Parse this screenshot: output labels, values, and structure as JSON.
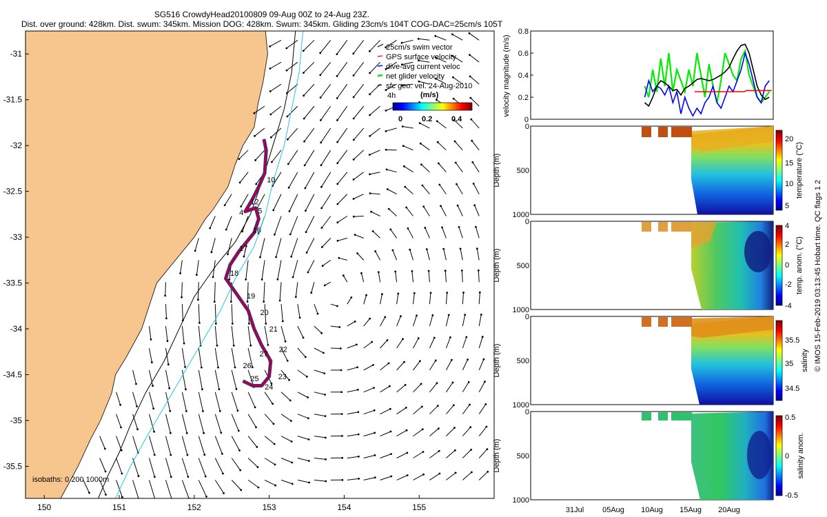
{
  "header": {
    "line1": "SG516 CrowdyHead20100809 09-Aug 00Z to 24-Aug 23Z.",
    "line2": "Dist. over ground: 428km. Dist. swum: 345km. Mission DOG: 428km. Swum: 345km. Gliding 23cm/s 104T COG-DAC=25cm/s 105T"
  },
  "colors": {
    "land": "#f7c58e",
    "track": "#cc0000",
    "track_dac": "#1f2fd0",
    "isobath_200": "#000000",
    "isobath_1000": "#22c8e8",
    "gps_velocity": "#ff0000",
    "dac_velocity": "#0000ff",
    "net_velocity": "#00ee00"
  },
  "side_note": "© IMOS 15-Feb-2019 03:13:45 Hobart time. QC flags 1 2",
  "chart_data": [
    {
      "type": "map",
      "xlim": [
        149.75,
        156.0
      ],
      "ylim": [
        -35.85,
        -30.75
      ],
      "x_ticks": [
        150,
        151,
        152,
        153,
        154,
        155
      ],
      "y_ticks": [
        -31,
        -31.5,
        -32,
        -32.5,
        -33,
        -33.5,
        -34,
        -34.5,
        -35,
        -35.5
      ],
      "legend": {
        "placement": "top-right",
        "entries": [
          "25cm/s swim vector",
          "GPS surface velocity",
          "dive-avg current veloc",
          "net glider velocity",
          "sfc geo. vel. 24-Aug-2010"
        ],
        "interval_label": "4h"
      },
      "colorbar": {
        "title": "(m/s)",
        "ticks": [
          "0",
          "0.2",
          "0.4"
        ],
        "range": [
          0,
          0.5
        ]
      },
      "isobath_label": "isobaths: 0  200  1000m",
      "coast": [
        [
          152.95,
          -30.75
        ],
        [
          152.98,
          -31.0
        ],
        [
          152.92,
          -31.3
        ],
        [
          152.85,
          -31.55
        ],
        [
          152.8,
          -31.8
        ],
        [
          152.65,
          -32.0
        ],
        [
          152.55,
          -32.2
        ],
        [
          152.45,
          -32.45
        ],
        [
          152.25,
          -32.7
        ],
        [
          152.15,
          -32.8
        ],
        [
          152.0,
          -33.0
        ],
        [
          151.7,
          -33.3
        ],
        [
          151.5,
          -33.5
        ],
        [
          151.4,
          -33.75
        ],
        [
          151.3,
          -34.0
        ],
        [
          151.1,
          -34.3
        ],
        [
          150.95,
          -34.5
        ],
        [
          150.9,
          -34.7
        ],
        [
          150.75,
          -35.0
        ],
        [
          150.62,
          -35.2
        ],
        [
          150.45,
          -35.5
        ],
        [
          150.22,
          -35.85
        ]
      ],
      "isobath_200": [
        [
          153.35,
          -30.75
        ],
        [
          153.3,
          -31.2
        ],
        [
          153.2,
          -31.6
        ],
        [
          153.05,
          -32.0
        ],
        [
          152.9,
          -32.4
        ],
        [
          152.75,
          -32.75
        ],
        [
          152.55,
          -33.05
        ],
        [
          152.3,
          -33.3
        ],
        [
          152.0,
          -33.65
        ],
        [
          151.8,
          -34.0
        ],
        [
          151.6,
          -34.35
        ],
        [
          151.35,
          -34.7
        ],
        [
          151.15,
          -35.05
        ],
        [
          151.0,
          -35.35
        ],
        [
          150.85,
          -35.6
        ],
        [
          150.72,
          -35.85
        ]
      ],
      "isobath_1000": [
        [
          153.45,
          -30.75
        ],
        [
          153.4,
          -31.2
        ],
        [
          153.3,
          -31.6
        ],
        [
          153.2,
          -32.0
        ],
        [
          153.05,
          -32.4
        ],
        [
          152.95,
          -32.75
        ],
        [
          152.8,
          -33.1
        ],
        [
          152.55,
          -33.45
        ],
        [
          152.35,
          -33.8
        ],
        [
          152.1,
          -34.15
        ],
        [
          151.85,
          -34.5
        ],
        [
          151.6,
          -34.85
        ],
        [
          151.35,
          -35.2
        ],
        [
          151.15,
          -35.5
        ],
        [
          150.95,
          -35.85
        ]
      ],
      "track": [
        [
          152.93,
          -31.93
        ],
        [
          152.96,
          -32.05
        ],
        [
          152.94,
          -32.3
        ],
        [
          152.86,
          -32.45
        ],
        [
          152.78,
          -32.58
        ],
        [
          152.68,
          -32.72
        ],
        [
          152.82,
          -32.68
        ],
        [
          152.86,
          -32.8
        ],
        [
          152.8,
          -32.95
        ],
        [
          152.7,
          -33.05
        ],
        [
          152.6,
          -33.15
        ],
        [
          152.48,
          -33.3
        ],
        [
          152.42,
          -33.45
        ],
        [
          152.55,
          -33.6
        ],
        [
          152.72,
          -33.8
        ],
        [
          152.8,
          -34.0
        ],
        [
          152.9,
          -34.18
        ],
        [
          153.02,
          -34.35
        ],
        [
          153.0,
          -34.52
        ],
        [
          152.9,
          -34.62
        ],
        [
          152.78,
          -34.62
        ],
        [
          152.65,
          -34.57
        ]
      ],
      "dive_labels": [
        {
          "text": "10",
          "lon": 152.97,
          "lat": -32.4
        },
        {
          "text": "12",
          "lon": 152.75,
          "lat": -32.64
        },
        {
          "text": "5",
          "lon": 152.85,
          "lat": -32.74
        },
        {
          "text": "4",
          "lon": 152.6,
          "lat": -32.76
        },
        {
          "text": "16",
          "lon": 152.78,
          "lat": -32.95
        },
        {
          "text": "17",
          "lon": 152.6,
          "lat": -33.15
        },
        {
          "text": "18",
          "lon": 152.48,
          "lat": -33.42
        },
        {
          "text": "19",
          "lon": 152.7,
          "lat": -33.67
        },
        {
          "text": "20",
          "lon": 152.88,
          "lat": -33.85
        },
        {
          "text": "21",
          "lon": 153.0,
          "lat": -34.03
        },
        {
          "text": "22",
          "lon": 153.13,
          "lat": -34.25
        },
        {
          "text": "27",
          "lon": 152.87,
          "lat": -34.3
        },
        {
          "text": "23",
          "lon": 153.12,
          "lat": -34.55
        },
        {
          "text": "26",
          "lon": 152.65,
          "lat": -34.43
        },
        {
          "text": "25",
          "lon": 152.75,
          "lat": -34.57
        },
        {
          "text": "24",
          "lon": 152.94,
          "lat": -34.66
        }
      ]
    },
    {
      "type": "line",
      "ylabel": "velocity magnitude (m/s)",
      "ylim": [
        0,
        0.8
      ],
      "y_ticks": [
        "0",
        "0.2",
        "0.4",
        "0.6",
        "0.8"
      ],
      "series": [
        {
          "color": "#00ee00",
          "x": [
            9.0,
            9.5,
            10.0,
            10.5,
            11.0,
            11.5,
            12.0,
            12.5,
            13.0,
            13.5,
            14.0,
            14.5,
            15.0,
            15.5,
            16.0,
            16.5,
            17.0,
            17.5,
            18.0,
            18.5,
            19.0,
            19.5,
            20.0,
            20.5,
            21.0,
            21.5,
            22.0,
            22.5,
            23.0,
            23.5,
            24.0,
            24.5
          ],
          "y": [
            0.3,
            0.2,
            0.45,
            0.25,
            0.55,
            0.3,
            0.6,
            0.25,
            0.45,
            0.35,
            0.25,
            0.45,
            0.3,
            0.6,
            0.4,
            0.2,
            0.5,
            0.3,
            0.15,
            0.35,
            0.6,
            0.5,
            0.4,
            0.35,
            0.55,
            0.62,
            0.4,
            0.3,
            0.2,
            0.15,
            0.2,
            0.25
          ]
        },
        {
          "color": "#0000ff",
          "x": [
            9.0,
            9.5,
            10.0,
            10.5,
            11.0,
            11.5,
            12.0,
            12.5,
            13.0,
            13.5,
            14.0,
            14.5,
            15.0,
            15.5,
            16.0,
            16.5,
            17.0,
            17.5,
            18.0,
            18.5,
            19.0,
            19.5,
            20.0,
            20.5,
            21.0,
            21.5,
            22.0,
            22.5,
            23.0,
            23.5,
            24.0,
            24.5
          ],
          "y": [
            0.2,
            0.35,
            0.25,
            0.3,
            0.28,
            0.22,
            0.3,
            0.15,
            0.25,
            0.05,
            0.2,
            0.1,
            0.03,
            0.1,
            0.05,
            0.15,
            0.2,
            0.3,
            0.15,
            0.1,
            0.2,
            0.3,
            0.25,
            0.35,
            0.45,
            0.6,
            0.5,
            0.35,
            0.2,
            0.15,
            0.3,
            0.35
          ]
        },
        {
          "color": "#000000",
          "x": [
            9.0,
            9.5,
            10.0,
            10.5,
            11.0,
            11.5,
            12.0,
            12.5,
            13.0,
            13.5,
            14.0,
            14.5,
            15.0,
            15.5,
            16.0,
            16.5,
            17.0,
            17.5,
            18.0,
            18.5,
            19.0,
            19.5,
            20.0,
            20.5,
            21.0,
            21.5,
            22.0,
            22.5,
            23.0,
            23.5,
            24.0,
            24.5
          ],
          "y": [
            0.15,
            0.12,
            0.2,
            0.3,
            0.35,
            0.33,
            0.3,
            0.26,
            0.27,
            0.22,
            0.28,
            0.3,
            0.33,
            0.36,
            0.37,
            0.36,
            0.35,
            0.36,
            0.38,
            0.4,
            0.43,
            0.47,
            0.55,
            0.62,
            0.67,
            0.68,
            0.6,
            0.45,
            0.3,
            0.22,
            0.18,
            0.2
          ]
        },
        {
          "color": "#ff0000",
          "x": [
            15.2,
            21.4,
            21.6,
            24.8
          ],
          "y": [
            0.25,
            0.25,
            0.26,
            0.26
          ]
        }
      ]
    },
    {
      "type": "heatmap",
      "ylabel": "Depth (m)",
      "colorbar_label": "temperature (°C)",
      "y_ticks": [
        "0",
        "500",
        "1000"
      ],
      "colorbar_ticks": [
        "20",
        "15",
        "10",
        "5"
      ]
    },
    {
      "type": "heatmap",
      "ylabel": "Depth (m)",
      "colorbar_label": "temp. anom. (°C)",
      "y_ticks": [
        "0",
        "500",
        "1000"
      ],
      "colorbar_ticks": [
        "4",
        "2",
        "0",
        "-2",
        "-4"
      ]
    },
    {
      "type": "heatmap",
      "ylabel": "Depth (m)",
      "colorbar_label": "salinity",
      "y_ticks": [
        "0",
        "500",
        "1000"
      ],
      "colorbar_ticks": [
        "35.5",
        "35",
        "34.5"
      ]
    },
    {
      "type": "heatmap",
      "ylabel": "Depth (m)",
      "colorbar_label": "salinity anom.",
      "y_ticks": [
        "0",
        "500",
        "1000"
      ],
      "colorbar_ticks": [
        "0.5",
        "0",
        "-0.5"
      ],
      "x_ticks": [
        "31Jul",
        "05Aug",
        "10Aug",
        "15Aug",
        "20Aug"
      ]
    }
  ]
}
